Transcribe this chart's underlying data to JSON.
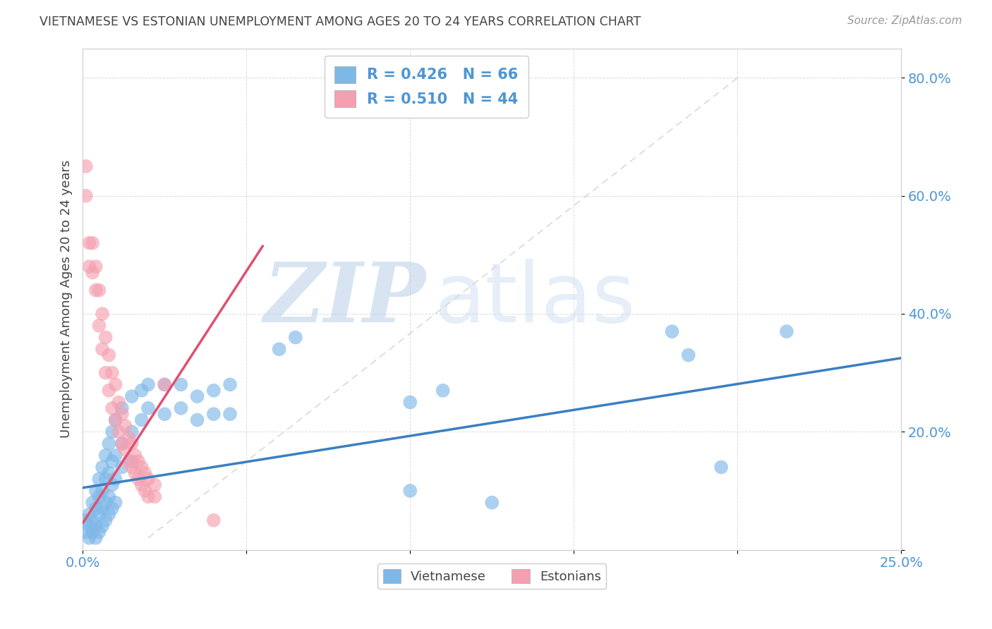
{
  "title": "VIETNAMESE VS ESTONIAN UNEMPLOYMENT AMONG AGES 20 TO 24 YEARS CORRELATION CHART",
  "source": "Source: ZipAtlas.com",
  "ylabel": "Unemployment Among Ages 20 to 24 years",
  "xlim": [
    0.0,
    0.25
  ],
  "ylim": [
    0.0,
    0.85
  ],
  "xticks": [
    0.0,
    0.05,
    0.1,
    0.15,
    0.2,
    0.25
  ],
  "yticks": [
    0.0,
    0.2,
    0.4,
    0.6,
    0.8
  ],
  "xticklabels": [
    "0.0%",
    "",
    "",
    "",
    "",
    "25.0%"
  ],
  "yticklabels": [
    "",
    "20.0%",
    "40.0%",
    "60.0%",
    "80.0%"
  ],
  "viet_color": "#7EB8E8",
  "viet_line_color": "#3A7FC1",
  "est_color": "#F5A0B0",
  "est_line_color": "#E05070",
  "viet_R": 0.426,
  "viet_N": 66,
  "est_R": 0.51,
  "est_N": 44,
  "watermark_zip": "ZIP",
  "watermark_atlas": "atlas",
  "legend_viet": "Vietnamese",
  "legend_est": "Estonians",
  "viet_points": [
    [
      0.001,
      0.05
    ],
    [
      0.001,
      0.03
    ],
    [
      0.002,
      0.06
    ],
    [
      0.002,
      0.04
    ],
    [
      0.002,
      0.02
    ],
    [
      0.003,
      0.08
    ],
    [
      0.003,
      0.05
    ],
    [
      0.003,
      0.03
    ],
    [
      0.004,
      0.1
    ],
    [
      0.004,
      0.07
    ],
    [
      0.004,
      0.04
    ],
    [
      0.004,
      0.02
    ],
    [
      0.005,
      0.12
    ],
    [
      0.005,
      0.09
    ],
    [
      0.005,
      0.06
    ],
    [
      0.005,
      0.03
    ],
    [
      0.006,
      0.14
    ],
    [
      0.006,
      0.1
    ],
    [
      0.006,
      0.07
    ],
    [
      0.006,
      0.04
    ],
    [
      0.007,
      0.16
    ],
    [
      0.007,
      0.12
    ],
    [
      0.007,
      0.08
    ],
    [
      0.007,
      0.05
    ],
    [
      0.008,
      0.18
    ],
    [
      0.008,
      0.13
    ],
    [
      0.008,
      0.09
    ],
    [
      0.008,
      0.06
    ],
    [
      0.009,
      0.2
    ],
    [
      0.009,
      0.15
    ],
    [
      0.009,
      0.11
    ],
    [
      0.009,
      0.07
    ],
    [
      0.01,
      0.22
    ],
    [
      0.01,
      0.16
    ],
    [
      0.01,
      0.12
    ],
    [
      0.01,
      0.08
    ],
    [
      0.012,
      0.24
    ],
    [
      0.012,
      0.18
    ],
    [
      0.012,
      0.14
    ],
    [
      0.015,
      0.26
    ],
    [
      0.015,
      0.2
    ],
    [
      0.015,
      0.15
    ],
    [
      0.018,
      0.27
    ],
    [
      0.018,
      0.22
    ],
    [
      0.02,
      0.28
    ],
    [
      0.02,
      0.24
    ],
    [
      0.025,
      0.28
    ],
    [
      0.025,
      0.23
    ],
    [
      0.03,
      0.28
    ],
    [
      0.03,
      0.24
    ],
    [
      0.035,
      0.26
    ],
    [
      0.035,
      0.22
    ],
    [
      0.04,
      0.27
    ],
    [
      0.04,
      0.23
    ],
    [
      0.045,
      0.28
    ],
    [
      0.045,
      0.23
    ],
    [
      0.06,
      0.34
    ],
    [
      0.065,
      0.36
    ],
    [
      0.1,
      0.25
    ],
    [
      0.11,
      0.27
    ],
    [
      0.18,
      0.37
    ],
    [
      0.185,
      0.33
    ],
    [
      0.195,
      0.14
    ],
    [
      0.215,
      0.37
    ],
    [
      0.1,
      0.1
    ],
    [
      0.125,
      0.08
    ]
  ],
  "est_points": [
    [
      0.001,
      0.65
    ],
    [
      0.001,
      0.6
    ],
    [
      0.002,
      0.52
    ],
    [
      0.002,
      0.48
    ],
    [
      0.003,
      0.52
    ],
    [
      0.003,
      0.47
    ],
    [
      0.004,
      0.48
    ],
    [
      0.004,
      0.44
    ],
    [
      0.005,
      0.44
    ],
    [
      0.005,
      0.38
    ],
    [
      0.006,
      0.4
    ],
    [
      0.006,
      0.34
    ],
    [
      0.007,
      0.36
    ],
    [
      0.007,
      0.3
    ],
    [
      0.008,
      0.33
    ],
    [
      0.008,
      0.27
    ],
    [
      0.009,
      0.3
    ],
    [
      0.009,
      0.24
    ],
    [
      0.01,
      0.28
    ],
    [
      0.01,
      0.22
    ],
    [
      0.011,
      0.25
    ],
    [
      0.011,
      0.2
    ],
    [
      0.012,
      0.23
    ],
    [
      0.012,
      0.18
    ],
    [
      0.013,
      0.21
    ],
    [
      0.013,
      0.17
    ],
    [
      0.014,
      0.19
    ],
    [
      0.014,
      0.15
    ],
    [
      0.015,
      0.18
    ],
    [
      0.015,
      0.14
    ],
    [
      0.016,
      0.16
    ],
    [
      0.016,
      0.13
    ],
    [
      0.017,
      0.15
    ],
    [
      0.017,
      0.12
    ],
    [
      0.018,
      0.14
    ],
    [
      0.018,
      0.11
    ],
    [
      0.019,
      0.13
    ],
    [
      0.019,
      0.1
    ],
    [
      0.02,
      0.12
    ],
    [
      0.02,
      0.09
    ],
    [
      0.022,
      0.11
    ],
    [
      0.022,
      0.09
    ],
    [
      0.025,
      0.28
    ],
    [
      0.04,
      0.05
    ]
  ],
  "background_color": "#ffffff",
  "grid_color": "#cccccc",
  "title_color": "#444444",
  "tick_color": "#4D96D4",
  "diagonal_color": "#c0c0c0"
}
